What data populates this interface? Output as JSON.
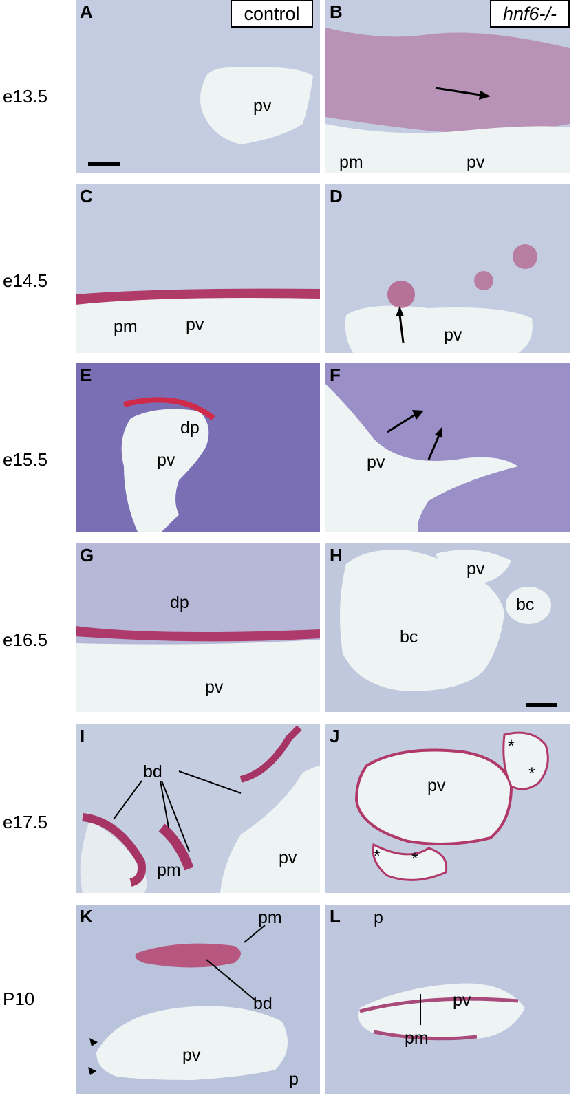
{
  "headers": {
    "left": "control",
    "right": "hnf6-/-"
  },
  "rows": [
    {
      "label": "e13.5"
    },
    {
      "label": "e14.5"
    },
    {
      "label": "e15.5"
    },
    {
      "label": "e16.5"
    },
    {
      "label": "e17.5"
    },
    {
      "label": "P10"
    }
  ],
  "panels": {
    "A": {
      "letter": "A",
      "labels": [
        "pv"
      ]
    },
    "B": {
      "letter": "B",
      "labels": [
        "pm",
        "pv"
      ]
    },
    "C": {
      "letter": "C",
      "labels": [
        "pm",
        "pv"
      ]
    },
    "D": {
      "letter": "D",
      "labels": [
        "pv"
      ]
    },
    "E": {
      "letter": "E",
      "labels": [
        "dp",
        "pv"
      ]
    },
    "F": {
      "letter": "F",
      "labels": [
        "pv"
      ]
    },
    "G": {
      "letter": "G",
      "labels": [
        "dp",
        "pv"
      ]
    },
    "H": {
      "letter": "H",
      "labels": [
        "pv",
        "bc",
        "bc"
      ]
    },
    "I": {
      "letter": "I",
      "labels": [
        "bd",
        "pm",
        "pv"
      ]
    },
    "J": {
      "letter": "J",
      "labels": [
        "pv",
        "*",
        "*",
        "*",
        "*"
      ]
    },
    "K": {
      "letter": "K",
      "labels": [
        "pm",
        "bd",
        "pv",
        "p"
      ]
    },
    "L": {
      "letter": "L",
      "labels": [
        "p",
        "pv",
        "pm"
      ]
    }
  },
  "colors": {
    "tissue": "#c7d0e2",
    "tissue_dark": "#8e8fc0",
    "vessel": "#eef4f4",
    "stain": "#c8284e"
  }
}
